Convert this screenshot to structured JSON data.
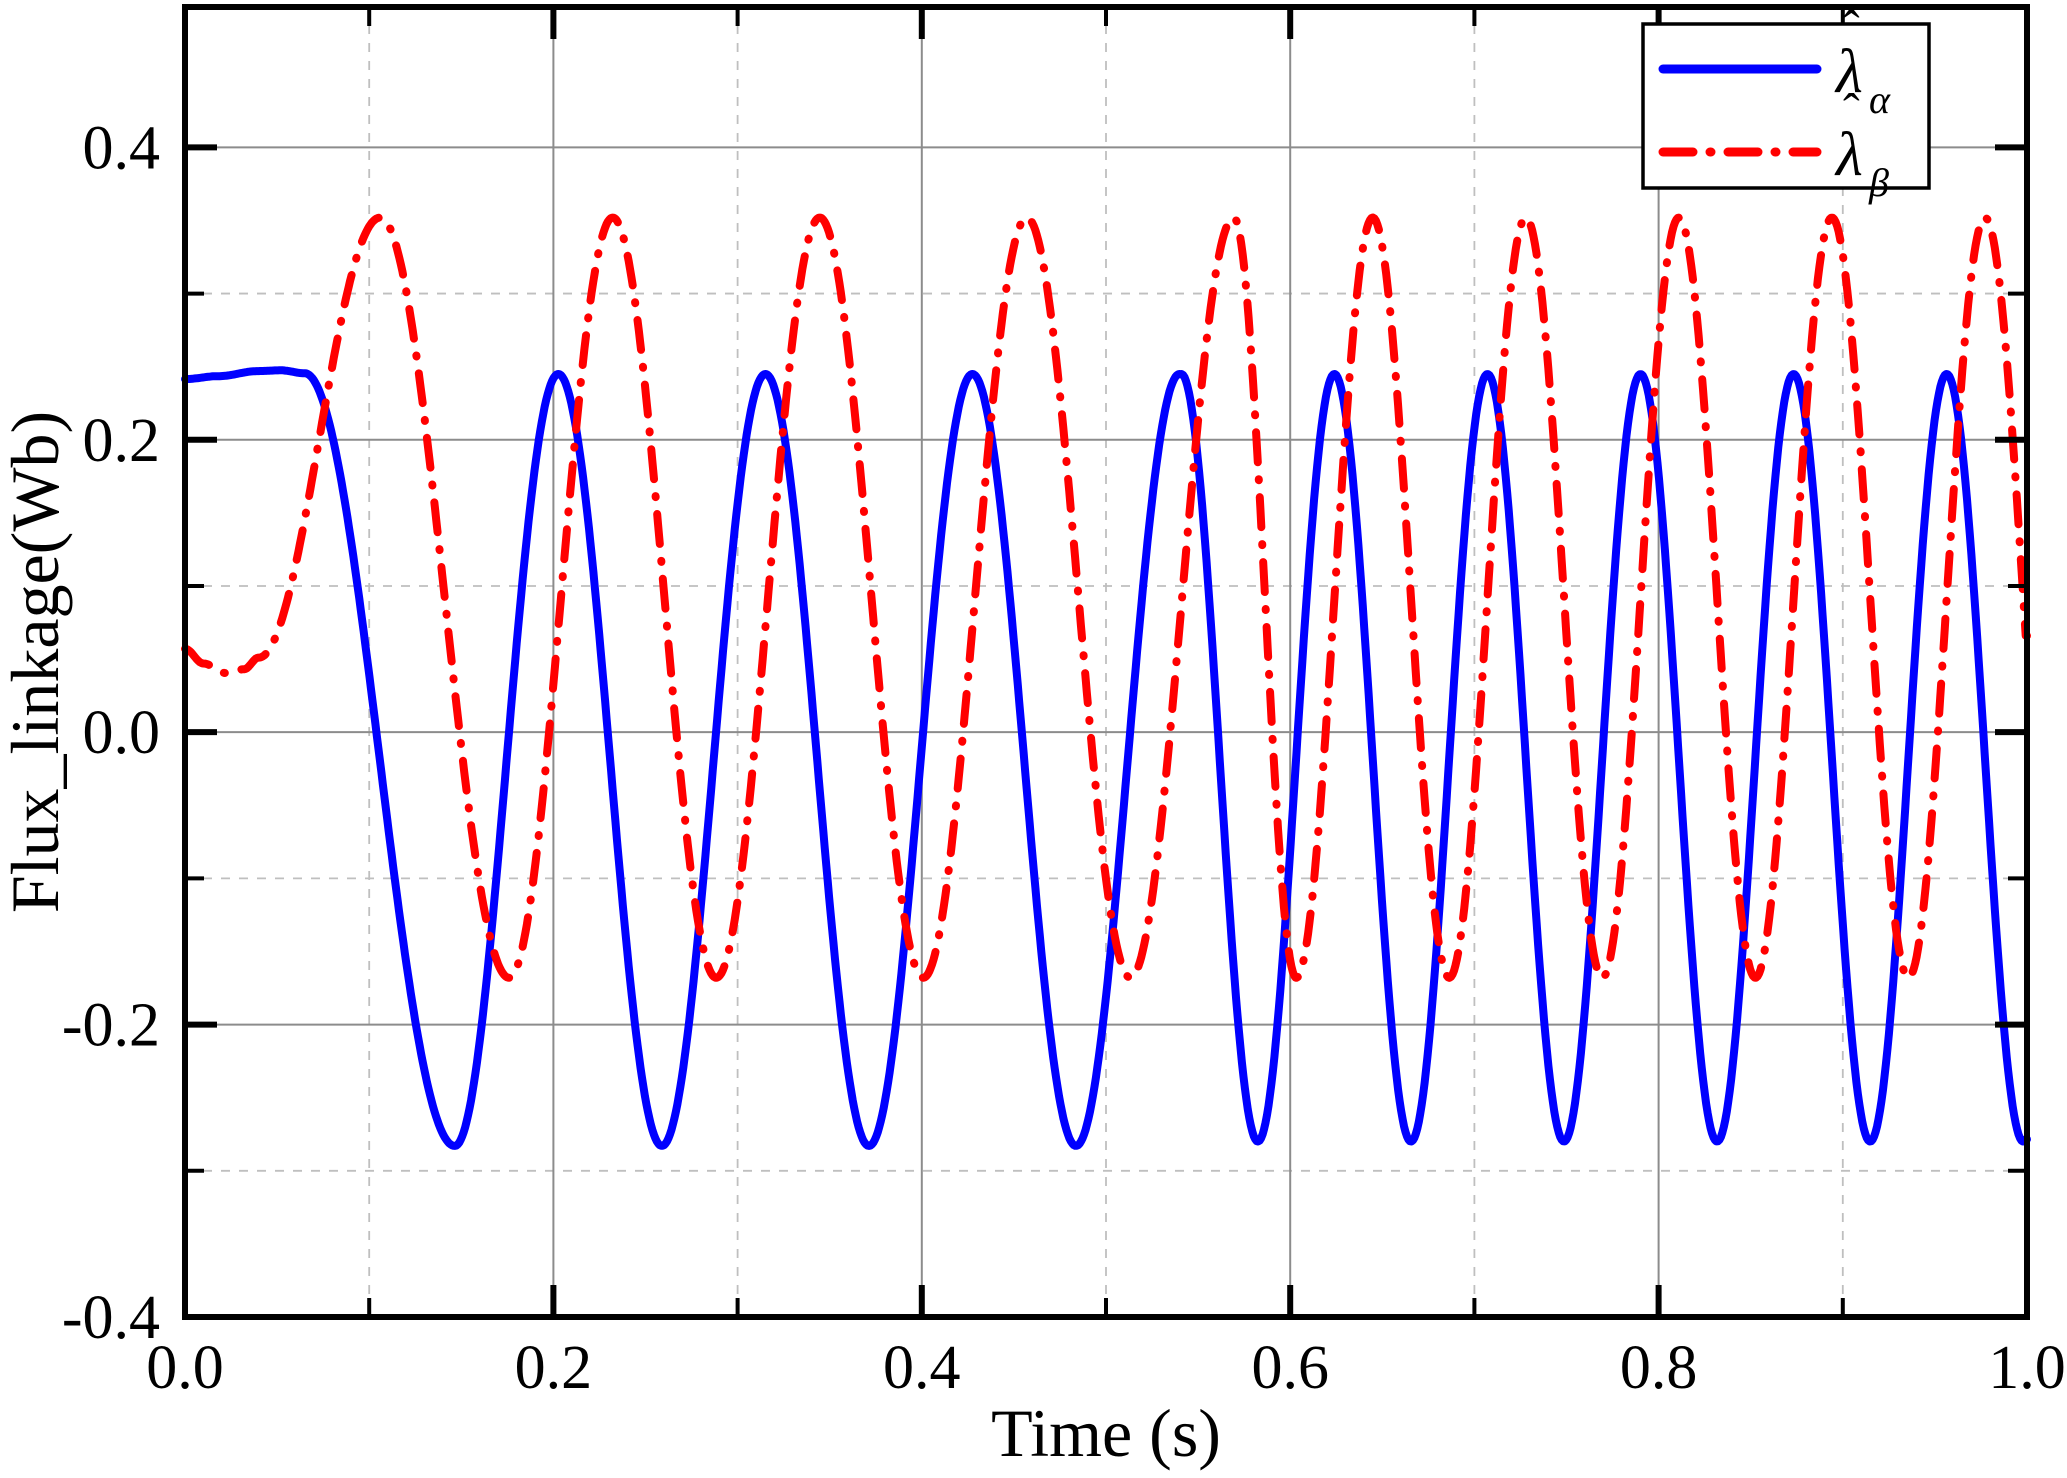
{
  "figure": {
    "background": "#ffffff"
  },
  "chart_data": {
    "type": "line",
    "title": "",
    "xlabel": "Time (s)",
    "ylabel": "Flux_linkage(Wb)",
    "xlim": [
      0.0,
      1.0
    ],
    "ylim": [
      -0.4,
      0.496
    ],
    "x_major_ticks": [
      0.0,
      0.2,
      0.4,
      0.6,
      0.8,
      1.0
    ],
    "x_major_tick_labels": [
      "0.0",
      "0.2",
      "0.4",
      "0.6",
      "0.8",
      "1.0"
    ],
    "x_minor_ticks": [
      0.1,
      0.3,
      0.5,
      0.7,
      0.9
    ],
    "y_major_ticks": [
      -0.4,
      -0.2,
      0.0,
      0.2,
      0.4
    ],
    "y_major_tick_labels": [
      "-0.4",
      "-0.2",
      "0.0",
      "0.2",
      "0.4"
    ],
    "y_minor_ticks": [
      -0.3,
      -0.1,
      0.1,
      0.3
    ],
    "grid": {
      "major_style": "solid",
      "major_color": "#8c8c8c",
      "minor_style": "dashed",
      "minor_color": "#bfbfbf",
      "visible": true
    },
    "legend": {
      "position": "top-right",
      "border_color": "#000000",
      "background": "#ffffff",
      "entries": [
        {
          "symbol": "λ",
          "hat": "ˆ",
          "subscript": "α",
          "color": "#0000ff",
          "line_style": "solid"
        },
        {
          "symbol": "λ",
          "hat": "ˆ",
          "subscript": "β",
          "color": "#ff0000",
          "line_style": "dash-dot"
        }
      ]
    },
    "series": [
      {
        "name": "lambda_alpha_hat",
        "label": "λ̂α",
        "color": "#0000ff",
        "style": "solid",
        "width": 8,
        "description": "Estimated alpha-axis flux linkage: flat ~0.245 Wb until 0.065 s, then sinusoid; peaks 0.245, troughs -0.28; period 0.112 s before 0.55 s, 0.083 s after",
        "segments": [
          {
            "kind": "pts",
            "t": [
              0.0,
              0.018,
              0.04,
              0.052,
              0.065
            ],
            "v": [
              0.2415,
              0.2435,
              0.247,
              0.2475,
              0.2455
            ]
          },
          {
            "kind": "half",
            "t0": 0.065,
            "t1": 0.1465,
            "v0": 0.2455,
            "v1": -0.283
          },
          {
            "kind": "sin",
            "t0": 0.1465,
            "t1": 0.541,
            "period": 0.1124,
            "tpeak": 0.2027,
            "mid": -0.019,
            "amp": 0.264
          },
          {
            "kind": "sin",
            "t0": 0.541,
            "t1": 1.0,
            "period": 0.0831,
            "tpeak": 0.624,
            "mid": -0.0175,
            "amp": 0.2625
          }
        ]
      },
      {
        "name": "lambda_beta_hat",
        "label": "λ̂β",
        "color": "#ff0000",
        "style": "dash-dot",
        "width": 8,
        "description": "Estimated beta-axis flux linkage: starts ~0.055 Wb, dips to 0.04, rises to 0.35 at 0.106 s; peaks 0.35, troughs -0.17; lags alpha by ~90 deg; period 0.112 s before 0.57 s, 0.083 s after",
        "segments": [
          {
            "kind": "pts",
            "t": [
              0.0,
              0.01,
              0.022,
              0.032,
              0.04
            ],
            "v": [
              0.057,
              0.047,
              0.0405,
              0.043,
              0.051
            ]
          },
          {
            "kind": "half",
            "t0": 0.04,
            "t1": 0.106,
            "v0": 0.051,
            "v1": 0.352
          },
          {
            "kind": "half",
            "t0": 0.106,
            "t1": 0.176,
            "v0": 0.352,
            "v1": -0.168
          },
          {
            "kind": "sin",
            "t0": 0.176,
            "t1": 0.5694,
            "period": 0.1124,
            "tpeak": 0.2322,
            "mid": 0.092,
            "amp": 0.26
          },
          {
            "kind": "half",
            "t0": 0.5694,
            "t1": 0.6033,
            "v0": 0.352,
            "v1": -0.168
          },
          {
            "kind": "sin",
            "t0": 0.6033,
            "t1": 1.0,
            "period": 0.0831,
            "tpeak": 0.6448,
            "mid": 0.092,
            "amp": 0.26
          }
        ]
      }
    ],
    "key_values": {
      "alpha_initial": 0.245,
      "alpha_peak": 0.245,
      "alpha_trough": -0.28,
      "beta_initial": 0.055,
      "beta_peak": 0.35,
      "beta_trough": -0.17,
      "period_slow_s": 0.112,
      "period_fast_s": 0.083,
      "speed_change_time_s": 0.56
    }
  }
}
